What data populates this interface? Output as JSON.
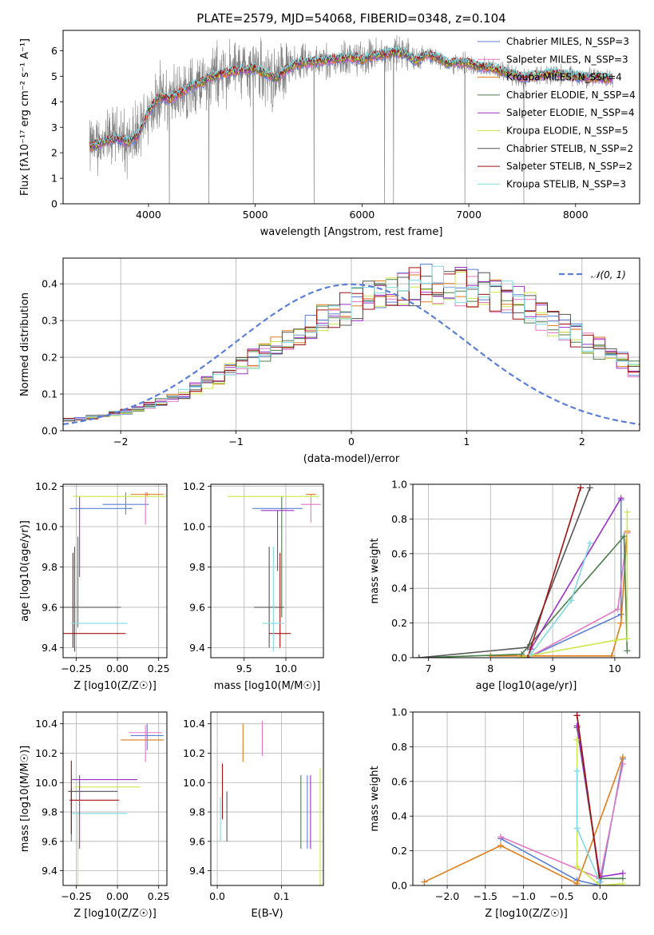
{
  "series_colors": [
    "#5b7fd6",
    "#e377c2",
    "#e07b18",
    "#4a7f4a",
    "#9b30c8",
    "#cbe84a",
    "#555555",
    "#a01010",
    "#7fd9e0"
  ],
  "series_names": [
    "Chabrier MILES, N_SSP=3",
    "Salpeter MILES, N_SSP=3",
    "Kroupa MILES, N_SSP=4",
    "Chabrier ELODIE, N_SSP=4",
    "Salpeter ELODIE, N_SSP=4",
    "Kroupa ELODIE, N_SSP=5",
    "Chabrier STELIB, N_SSP=2",
    "Salpeter STELIB, N_SSP=2",
    "Kroupa STELIB, N_SSP=3"
  ],
  "chart_data": [
    {
      "id": "spectrum",
      "type": "line",
      "title": "PLATE=2579, MJD=54068, FIBERID=0348, z=0.104",
      "xlabel": "wavelength [Angstrom, rest frame]",
      "ylabel": "Flux [fλ10⁻¹⁷ erg cm⁻² s⁻¹ A⁻¹]",
      "xlim": [
        3200,
        8600
      ],
      "ylim": [
        0,
        6.8
      ],
      "xticks": [
        4000,
        5000,
        6000,
        7000,
        8000
      ],
      "yticks": [
        0,
        1,
        2,
        3,
        4,
        5,
        6
      ],
      "grid": false,
      "legend": "top-right",
      "data_color": "#808080",
      "continuum": {
        "x": [
          3450,
          3500,
          3600,
          3700,
          3800,
          3900,
          4000,
          4100,
          4200,
          4300,
          4400,
          4500,
          4600,
          4700,
          4800,
          4900,
          5000,
          5100,
          5200,
          5300,
          5400,
          5500,
          5600,
          5700,
          5800,
          5900,
          6000,
          6100,
          6200,
          6300,
          6400,
          6500,
          6600,
          6700,
          6800,
          6900,
          7000,
          7100,
          7200,
          7300,
          7400,
          7500,
          7600,
          7700,
          7800,
          7900,
          8000,
          8100,
          8200,
          8300,
          8350
        ],
        "y": [
          2.2,
          2.3,
          2.45,
          2.6,
          2.4,
          2.7,
          3.6,
          4.2,
          4.1,
          4.35,
          4.6,
          4.75,
          5.0,
          5.1,
          5.2,
          5.25,
          5.3,
          5.1,
          4.9,
          5.3,
          5.5,
          5.55,
          5.6,
          5.65,
          5.7,
          5.75,
          5.65,
          5.8,
          5.85,
          5.95,
          5.9,
          5.6,
          5.85,
          5.75,
          5.5,
          5.55,
          5.5,
          5.35,
          5.35,
          5.2,
          5.1,
          4.95,
          5.0,
          5.05,
          5.1,
          5.05,
          5.0,
          4.95,
          4.95,
          4.9,
          4.9
        ]
      }
    },
    {
      "id": "residuals",
      "type": "histogram",
      "xlabel": "(data-model)/error",
      "ylabel": "Normed distribution",
      "xlim": [
        -2.5,
        2.5
      ],
      "ylim": [
        0,
        0.47
      ],
      "xticks": [
        -2,
        -1,
        0,
        1,
        2
      ],
      "yticks": [
        0.0,
        0.1,
        0.2,
        0.3,
        0.4
      ],
      "grid": true,
      "legend": "top-right",
      "reference_label": "𝒩(0, 1)",
      "reference_color": "#5b7fd6",
      "bin_width": 0.1,
      "bin_start": -2.5,
      "shape": [
        0.03,
        0.033,
        0.037,
        0.041,
        0.046,
        0.052,
        0.06,
        0.068,
        0.078,
        0.09,
        0.101,
        0.115,
        0.13,
        0.146,
        0.162,
        0.178,
        0.196,
        0.213,
        0.231,
        0.249,
        0.266,
        0.284,
        0.301,
        0.317,
        0.332,
        0.346,
        0.359,
        0.37,
        0.38,
        0.388,
        0.394,
        0.398,
        0.399,
        0.398,
        0.395,
        0.389,
        0.381,
        0.371,
        0.36,
        0.346,
        0.331,
        0.315,
        0.298,
        0.28,
        0.262,
        0.243,
        0.225,
        0.206,
        0.188,
        0.17,
        0.152
      ]
    },
    {
      "id": "age-vs-Z",
      "type": "errorbar",
      "xlabel": "Z [log10(Z/Z☉)]",
      "ylabel": "age  [log10(age/yr)]",
      "xlim": [
        -0.33,
        0.3
      ],
      "ylim": [
        9.35,
        10.21
      ],
      "xticks": [
        -0.25,
        0.0,
        0.25
      ],
      "xticklabels": [
        "−0.25",
        "0.00",
        "0.25"
      ],
      "yticks": [
        9.4,
        9.6,
        9.8,
        10.0,
        10.2
      ],
      "grid": true,
      "points": [
        {
          "series": 0,
          "x": 0.05,
          "xerr": 0.14,
          "y": 10.11,
          "yerr": [
            0.05,
            0.06
          ]
        },
        {
          "series": 1,
          "x": 0.17,
          "xerr": 0.0,
          "y": 10.11,
          "yerr": [
            0.1,
            0.06
          ]
        },
        {
          "series": 2,
          "x": 0.18,
          "xerr": 0.1,
          "y": 10.16,
          "yerr": [
            0.01,
            0.01
          ]
        },
        {
          "series": 3,
          "x": -0.24,
          "xerr": 0.0,
          "y": 9.75,
          "yerr": [
            0.25,
            0.2
          ]
        },
        {
          "series": 4,
          "x": -0.23,
          "xerr": 0.0,
          "y": 9.95,
          "yerr": [
            0.2,
            0.2
          ]
        },
        {
          "series": 5,
          "x": 0.03,
          "xerr": 0.3,
          "y": 10.15,
          "yerr": [
            0.0,
            0.0
          ]
        },
        {
          "series": 6,
          "x": -0.26,
          "xerr": 0.28,
          "y": 9.6,
          "yerr": [
            0.22,
            0.3
          ]
        },
        {
          "series": 7,
          "x": -0.27,
          "xerr": 0.32,
          "y": 9.47,
          "yerr": [
            0.07,
            0.4
          ]
        },
        {
          "series": 8,
          "x": -0.11,
          "xerr": 0.17,
          "y": 9.52,
          "yerr": [
            0.0,
            0.0
          ]
        },
        {
          "series": 0,
          "x": -0.1,
          "xerr": 0.19,
          "y": 10.09,
          "yerr": [
            0.0,
            0.0
          ]
        }
      ]
    },
    {
      "id": "age-vs-mass",
      "type": "errorbar",
      "xlabel": "mass [log10(M/M☉)]",
      "ylabel": "",
      "xlim": [
        9.1,
        10.45
      ],
      "ylim": [
        9.35,
        10.21
      ],
      "xticks": [
        9.5,
        10.0
      ],
      "xticklabels": [
        "9.5",
        "10.0"
      ],
      "yticks": [
        9.4,
        9.6,
        9.8,
        10.0,
        10.2
      ],
      "grid": true,
      "points": [
        {
          "series": 0,
          "x": 9.9,
          "xerr": 0.3,
          "y": 10.09,
          "yerr": [
            0.0,
            0.0
          ]
        },
        {
          "series": 1,
          "x": 10.3,
          "xerr": 0.12,
          "y": 10.11,
          "yerr": [
            0.09,
            0.05
          ]
        },
        {
          "series": 2,
          "x": 10.3,
          "xerr": 0.06,
          "y": 10.16,
          "yerr": [
            0.0,
            0.0
          ]
        },
        {
          "series": 3,
          "x": 9.95,
          "xerr": 0.0,
          "y": 9.85,
          "yerr": [
            0.3,
            0.3
          ]
        },
        {
          "series": 4,
          "x": 9.9,
          "xerr": 0.2,
          "y": 10.08,
          "yerr": [
            0.3,
            0.0
          ]
        },
        {
          "series": 5,
          "x": 9.85,
          "xerr": 0.55,
          "y": 10.15,
          "yerr": [
            0.0,
            0.0
          ]
        },
        {
          "series": 6,
          "x": 9.8,
          "xerr": 0.18,
          "y": 9.6,
          "yerr": [
            0.2,
            0.3
          ]
        },
        {
          "series": 7,
          "x": 9.93,
          "xerr": 0.13,
          "y": 9.47,
          "yerr": [
            0.07,
            0.4
          ]
        },
        {
          "series": 8,
          "x": 9.85,
          "xerr": 0.13,
          "y": 9.52,
          "yerr": [
            0.14,
            0.38
          ]
        }
      ]
    },
    {
      "id": "massweight-vs-age",
      "type": "line",
      "xlabel": "age  [log10(age/yr)]",
      "ylabel": "mass weight",
      "xlim": [
        6.75,
        10.4
      ],
      "ylim": [
        0,
        1.0
      ],
      "xticks": [
        7,
        8,
        9,
        10
      ],
      "yticks": [
        0.0,
        0.2,
        0.4,
        0.6,
        0.8,
        1.0
      ],
      "grid": true,
      "series": [
        {
          "series": 0,
          "x": [
            8.6,
            10.1,
            10.1
          ],
          "y": [
            0.0,
            0.25,
            0.91
          ]
        },
        {
          "series": 1,
          "x": [
            8.6,
            10.05,
            10.2
          ],
          "y": [
            0.0,
            0.28,
            0.72
          ]
        },
        {
          "series": 2,
          "x": [
            8.0,
            9.95,
            10.1,
            10.2
          ],
          "y": [
            0.01,
            0.01,
            0.2,
            0.73
          ]
        },
        {
          "series": 3,
          "x": [
            6.85,
            8.5,
            10.15,
            10.2
          ],
          "y": [
            0.0,
            0.02,
            0.7,
            0.04
          ]
        },
        {
          "series": 4,
          "x": [
            8.65,
            10.1
          ],
          "y": [
            0.05,
            0.92
          ]
        },
        {
          "series": 5,
          "x": [
            8.45,
            10.0,
            10.2,
            10.2
          ],
          "y": [
            0.0,
            0.1,
            0.11,
            0.84
          ]
        },
        {
          "series": 6,
          "x": [
            6.85,
            8.6,
            9.6
          ],
          "y": [
            0.0,
            0.06,
            0.98
          ]
        },
        {
          "series": 7,
          "x": [
            8.6,
            9.45
          ],
          "y": [
            0.0,
            0.98
          ]
        },
        {
          "series": 8,
          "x": [
            8.65,
            9.3,
            9.6
          ],
          "y": [
            0.02,
            0.33,
            0.66
          ]
        }
      ]
    },
    {
      "id": "mass-vs-Z",
      "type": "errorbar",
      "xlabel": "Z [log10(Z/Z☉)]",
      "ylabel": "mass [log10(M/M☉)]",
      "xlim": [
        -0.33,
        0.3
      ],
      "ylim": [
        9.3,
        10.48
      ],
      "xticks": [
        -0.25,
        0.0,
        0.25
      ],
      "xticklabels": [
        "−0.25",
        "0.00",
        "0.25"
      ],
      "yticks": [
        9.4,
        9.6,
        9.8,
        10.0,
        10.2,
        10.4
      ],
      "grid": true,
      "points": [
        {
          "series": 0,
          "x": 0.18,
          "xerr": 0.1,
          "y": 10.32,
          "yerr": [
            0.1,
            0.08
          ]
        },
        {
          "series": 1,
          "x": 0.17,
          "xerr": 0.1,
          "y": 10.34,
          "yerr": [
            0.2,
            0.05
          ]
        },
        {
          "series": 2,
          "x": 0.15,
          "xerr": 0.13,
          "y": 10.29,
          "yerr": [
            0.0,
            0.0
          ]
        },
        {
          "series": 3,
          "x": -0.28,
          "xerr": 0.0,
          "y": 9.84,
          "yerr": [
            0.24,
            0.12
          ]
        },
        {
          "series": 4,
          "x": -0.08,
          "xerr": 0.2,
          "y": 10.02,
          "yerr": [
            0.0,
            0.0
          ]
        },
        {
          "series": 5,
          "x": -0.06,
          "xerr": 0.2,
          "y": 9.97,
          "yerr": [
            0.0,
            0.0
          ]
        },
        {
          "series": 6,
          "x": -0.15,
          "xerr": 0.15,
          "y": 9.94,
          "yerr": [
            0.0,
            0.0
          ]
        },
        {
          "series": 7,
          "x": -0.14,
          "xerr": 0.15,
          "y": 9.88,
          "yerr": [
            0.0,
            0.0
          ]
        },
        {
          "series": 8,
          "x": -0.11,
          "xerr": 0.17,
          "y": 9.79,
          "yerr": [
            0.0,
            0.0
          ]
        },
        {
          "series": 4,
          "x": -0.23,
          "xerr": 0.0,
          "y": 9.8,
          "yerr": [
            0.25,
            0.25
          ]
        },
        {
          "series": 5,
          "x": -0.24,
          "xerr": 0.0,
          "y": 9.55,
          "yerr": [
            0.25,
            0.25
          ]
        },
        {
          "series": 7,
          "x": -0.28,
          "xerr": 0.0,
          "y": 9.9,
          "yerr": [
            0.25,
            0.25
          ]
        }
      ]
    },
    {
      "id": "mass-vs-EBV",
      "type": "errorbar",
      "xlabel": "E(B-V)",
      "ylabel": "",
      "xlim": [
        -0.01,
        0.165
      ],
      "ylim": [
        9.3,
        10.48
      ],
      "xticks": [
        0.0,
        0.1
      ],
      "xticklabels": [
        "0.0",
        "0.1"
      ],
      "yticks": [
        9.4,
        9.6,
        9.8,
        10.0,
        10.2,
        10.4
      ],
      "grid": true,
      "points": [
        {
          "series": 0,
          "x": 0.14,
          "xerr": 0.0,
          "y": 9.8,
          "yerr": [
            0.25,
            0.25
          ]
        },
        {
          "series": 1,
          "x": 0.07,
          "xerr": 0.0,
          "y": 10.3,
          "yerr": [
            0.12,
            0.12
          ]
        },
        {
          "series": 2,
          "x": 0.04,
          "xerr": 0.0,
          "y": 10.27,
          "yerr": [
            0.13,
            0.13
          ]
        },
        {
          "series": 3,
          "x": 0.13,
          "xerr": 0.0,
          "y": 9.8,
          "yerr": [
            0.25,
            0.25
          ]
        },
        {
          "series": 4,
          "x": 0.145,
          "xerr": 0.0,
          "y": 9.8,
          "yerr": [
            0.25,
            0.25
          ]
        },
        {
          "series": 5,
          "x": 0.16,
          "xerr": 0.0,
          "y": 9.7,
          "yerr": [
            0.4,
            0.4
          ]
        },
        {
          "series": 6,
          "x": 0.015,
          "xerr": 0.0,
          "y": 9.77,
          "yerr": [
            0.17,
            0.17
          ]
        },
        {
          "series": 7,
          "x": 0.008,
          "xerr": 0.0,
          "y": 9.94,
          "yerr": [
            0.19,
            0.19
          ]
        },
        {
          "series": 8,
          "x": 0.005,
          "xerr": 0.0,
          "y": 9.75,
          "yerr": [
            0.15,
            0.15
          ]
        }
      ]
    },
    {
      "id": "massweight-vs-Z",
      "type": "line",
      "xlabel": "Z [log10(Z/Z☉)]",
      "ylabel": "mass weight",
      "xlim": [
        -2.45,
        0.52
      ],
      "ylim": [
        0,
        1.0
      ],
      "xticks": [
        -2.0,
        -1.5,
        -1.0,
        -0.5,
        0.0
      ],
      "xticklabels": [
        "−2.0",
        "−1.5",
        "−1.0",
        "−0.5",
        "0.0"
      ],
      "yticks": [
        0.0,
        0.2,
        0.4,
        0.6,
        0.8,
        1.0
      ],
      "grid": true,
      "series": [
        {
          "series": 0,
          "x": [
            -1.3,
            -0.3,
            0.0,
            0.3
          ],
          "y": [
            0.27,
            0.03,
            0.0,
            0.73
          ]
        },
        {
          "series": 1,
          "x": [
            -1.3,
            0.0,
            0.3
          ],
          "y": [
            0.28,
            0.04,
            0.7
          ]
        },
        {
          "series": 2,
          "x": [
            -2.3,
            -1.3,
            -0.3,
            0.3
          ],
          "y": [
            0.02,
            0.23,
            0.01,
            0.74
          ]
        },
        {
          "series": 3,
          "x": [
            -0.3,
            0.0,
            0.3
          ],
          "y": [
            0.91,
            0.04,
            0.04
          ]
        },
        {
          "series": 4,
          "x": [
            -0.3,
            0.0,
            0.3
          ],
          "y": [
            0.92,
            0.05,
            0.07
          ]
        },
        {
          "series": 5,
          "x": [
            -0.3,
            -0.3,
            0.0,
            0.3
          ],
          "y": [
            0.84,
            0.11,
            0.0,
            0.01
          ]
        },
        {
          "series": 6,
          "x": [
            -0.3,
            0.0
          ],
          "y": [
            0.98,
            0.02
          ]
        },
        {
          "series": 7,
          "x": [
            -0.3,
            0.0
          ],
          "y": [
            0.98,
            0.02
          ]
        },
        {
          "series": 8,
          "x": [
            -0.3,
            -0.3,
            0.0
          ],
          "y": [
            0.66,
            0.33,
            0.02
          ]
        }
      ]
    }
  ]
}
